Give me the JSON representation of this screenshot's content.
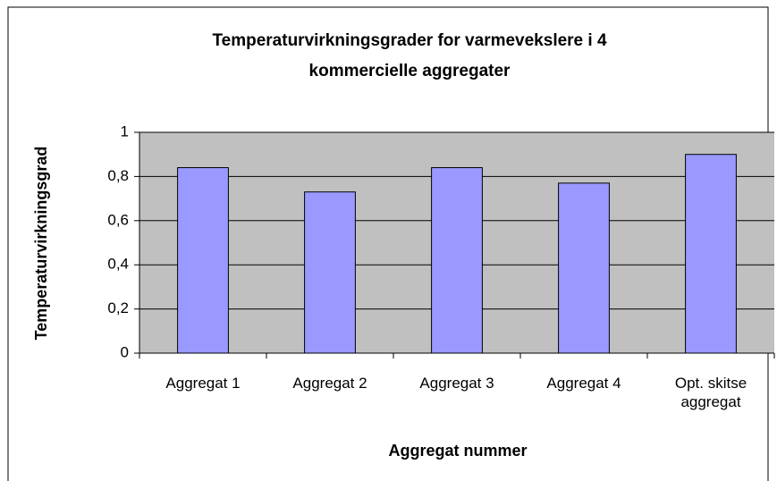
{
  "chart_data": {
    "type": "bar",
    "title": [
      "Temperaturvirkningsgrader for varmevekslere i  4",
      "kommercielle aggregater"
    ],
    "x_label": "Aggregat nummer",
    "y_label": "Temperaturvirkningsgrad",
    "categories": [
      "Aggregat 1",
      "Aggregat 2",
      "Aggregat 3",
      "Aggregat 4",
      "Opt. skitse aggregat"
    ],
    "values": [
      0.84,
      0.73,
      0.84,
      0.77,
      0.9
    ],
    "color": "#9999ff",
    "ylim": [
      0,
      1
    ],
    "yticks": [
      0,
      {
        "value": 0.2,
        "label": "0,2"
      },
      {
        "value": 0.4,
        "label": "0,4"
      },
      {
        "value": 0.6,
        "label": "0,6"
      },
      {
        "value": 0.8,
        "label": "0,8"
      },
      1
    ],
    "grid": true
  }
}
